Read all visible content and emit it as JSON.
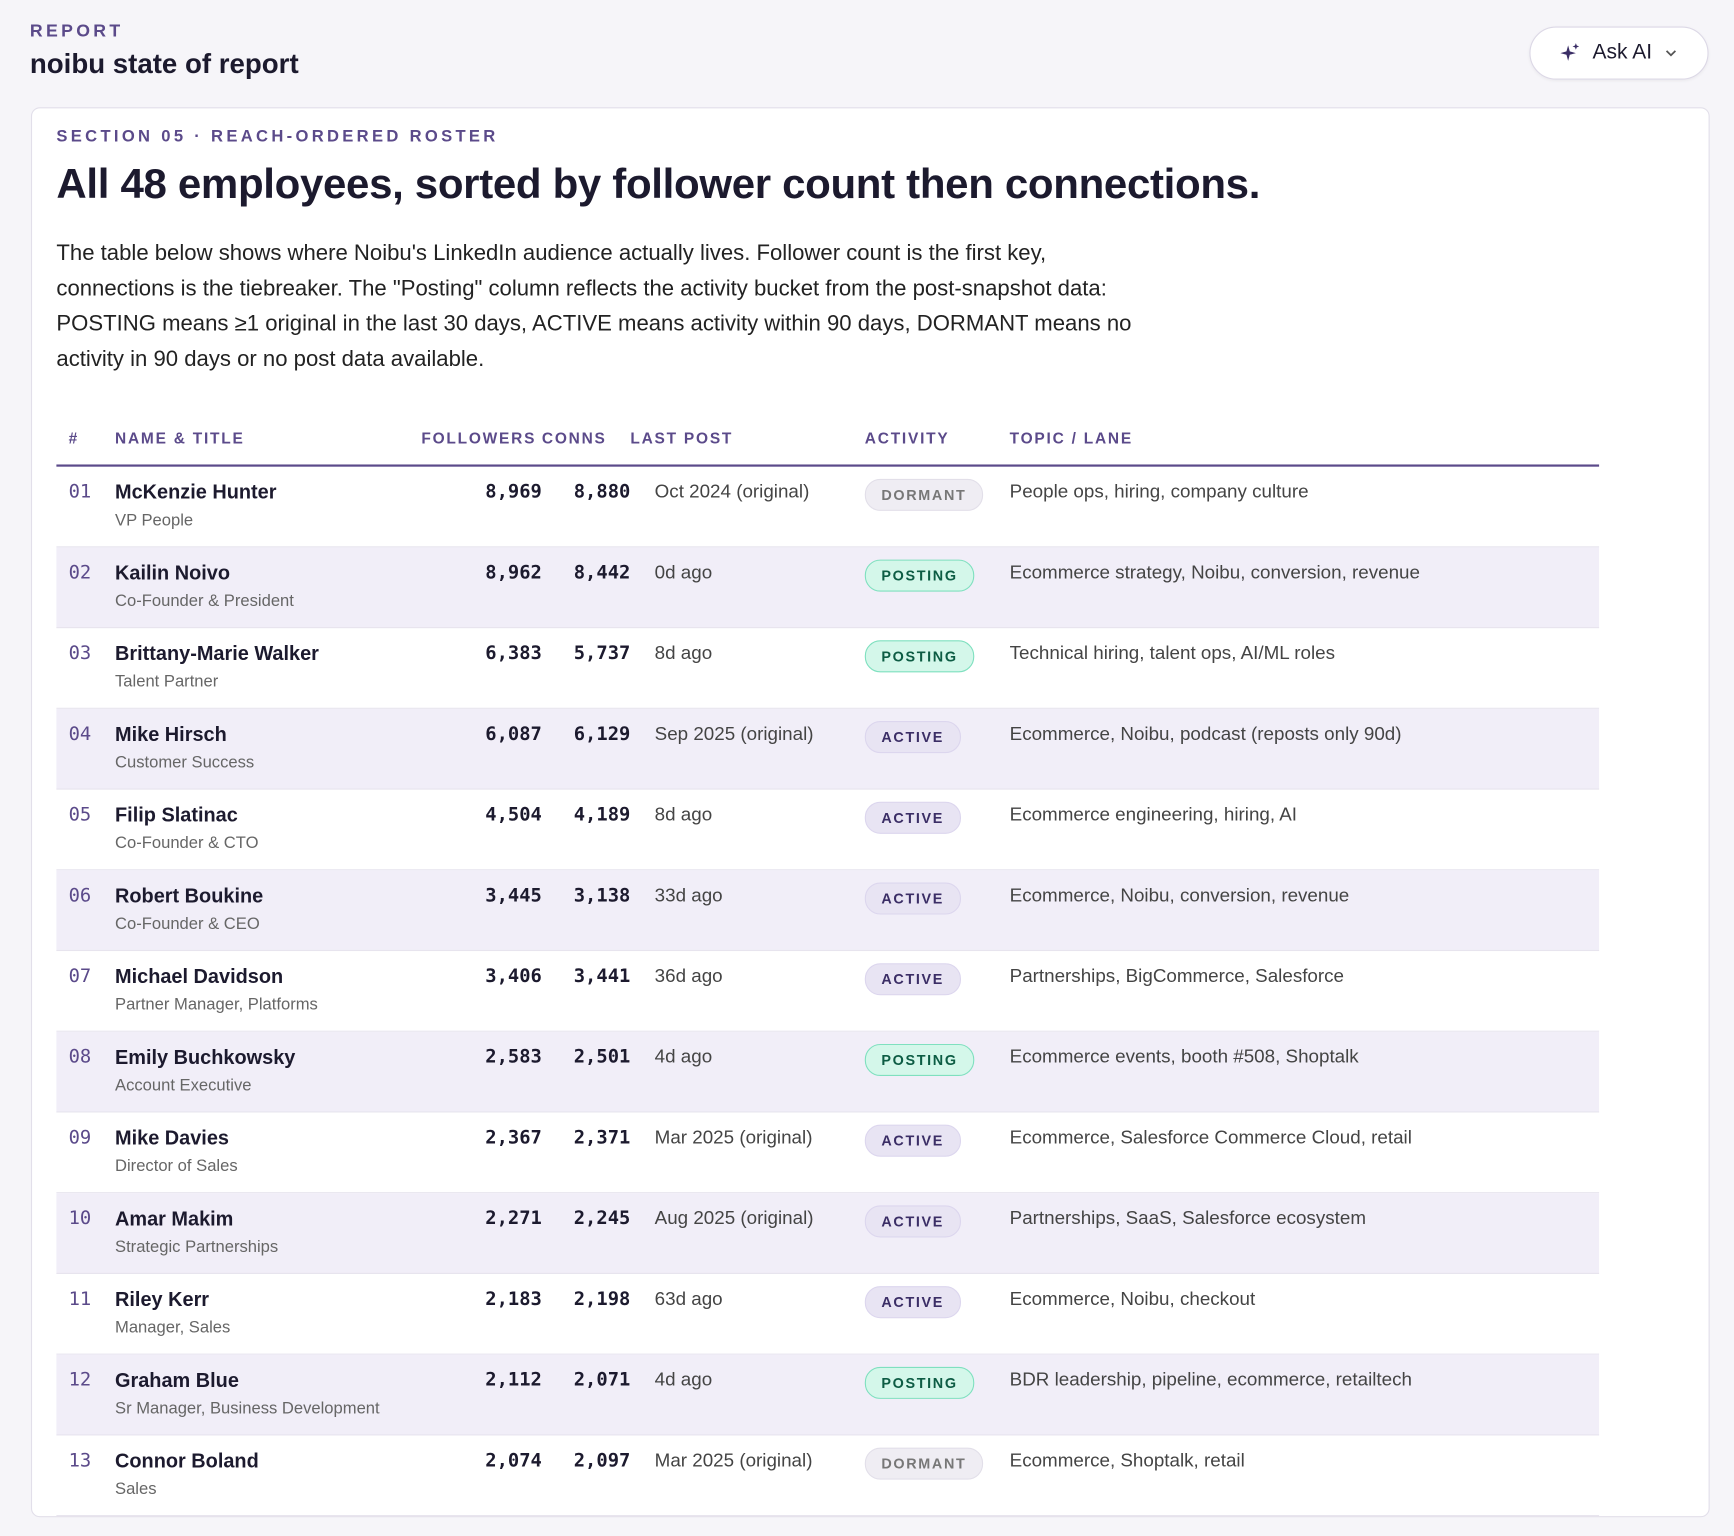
{
  "header": {
    "eyebrow": "REPORT",
    "title": "noibu state of report",
    "button": "Ask AI"
  },
  "section": {
    "eyebrow": "SECTION 05 · REACH-ORDERED ROSTER",
    "title": "All 48 employees, sorted by follower count then connections.",
    "paragraph": "The table below shows where Noibu's LinkedIn audience actually lives. Follower count is the first key, connections is the tiebreaker. The \"Posting\" column reflects the activity bucket from the post-snapshot data: POSTING means ≥1 original in the last 30 days, ACTIVE means activity within 90 days, DORMANT means no activity in 90 days or no post data available."
  },
  "table": {
    "columns": [
      "#",
      "NAME & TITLE",
      "FOLLOWERS",
      "CONNS",
      "LAST POST",
      "ACTIVITY",
      "TOPIC / LANE"
    ],
    "rows": [
      {
        "num": "01",
        "name": "McKenzie Hunter",
        "title": "VP People",
        "followers": "8,969",
        "conns": "8,880",
        "last_post": "Oct 2024 (original)",
        "activity": "DORMANT",
        "topic": "People ops, hiring, company culture"
      },
      {
        "num": "02",
        "name": "Kailin Noivo",
        "title": "Co-Founder & President",
        "followers": "8,962",
        "conns": "8,442",
        "last_post": "0d ago",
        "activity": "POSTING",
        "topic": "Ecommerce strategy, Noibu, conversion, revenue"
      },
      {
        "num": "03",
        "name": "Brittany-Marie Walker",
        "title": "Talent Partner",
        "followers": "6,383",
        "conns": "5,737",
        "last_post": "8d ago",
        "activity": "POSTING",
        "topic": "Technical hiring, talent ops, AI/ML roles"
      },
      {
        "num": "04",
        "name": "Mike Hirsch",
        "title": "Customer Success",
        "followers": "6,087",
        "conns": "6,129",
        "last_post": "Sep 2025 (original)",
        "activity": "ACTIVE",
        "topic": "Ecommerce, Noibu, podcast (reposts only 90d)"
      },
      {
        "num": "05",
        "name": "Filip Slatinac",
        "title": "Co-Founder & CTO",
        "followers": "4,504",
        "conns": "4,189",
        "last_post": "8d ago",
        "activity": "ACTIVE",
        "topic": "Ecommerce engineering, hiring, AI"
      },
      {
        "num": "06",
        "name": "Robert Boukine",
        "title": "Co-Founder & CEO",
        "followers": "3,445",
        "conns": "3,138",
        "last_post": "33d ago",
        "activity": "ACTIVE",
        "topic": "Ecommerce, Noibu, conversion, revenue"
      },
      {
        "num": "07",
        "name": "Michael Davidson",
        "title": "Partner Manager, Platforms",
        "followers": "3,406",
        "conns": "3,441",
        "last_post": "36d ago",
        "activity": "ACTIVE",
        "topic": "Partnerships, BigCommerce, Salesforce"
      },
      {
        "num": "08",
        "name": "Emily Buchkowsky",
        "title": "Account Executive",
        "followers": "2,583",
        "conns": "2,501",
        "last_post": "4d ago",
        "activity": "POSTING",
        "topic": "Ecommerce events, booth #508, Shoptalk"
      },
      {
        "num": "09",
        "name": "Mike Davies",
        "title": "Director of Sales",
        "followers": "2,367",
        "conns": "2,371",
        "last_post": "Mar 2025 (original)",
        "activity": "ACTIVE",
        "topic": "Ecommerce, Salesforce Commerce Cloud, retail"
      },
      {
        "num": "10",
        "name": "Amar Makim",
        "title": "Strategic Partnerships",
        "followers": "2,271",
        "conns": "2,245",
        "last_post": "Aug 2025 (original)",
        "activity": "ACTIVE",
        "topic": "Partnerships, SaaS, Salesforce ecosystem"
      },
      {
        "num": "11",
        "name": "Riley Kerr",
        "title": "Manager, Sales",
        "followers": "2,183",
        "conns": "2,198",
        "last_post": "63d ago",
        "activity": "ACTIVE",
        "topic": "Ecommerce, Noibu, checkout"
      },
      {
        "num": "12",
        "name": "Graham Blue",
        "title": "Sr Manager, Business Development",
        "followers": "2,112",
        "conns": "2,071",
        "last_post": "4d ago",
        "activity": "POSTING",
        "topic": "BDR leadership, pipeline, ecommerce, retailtech"
      },
      {
        "num": "13",
        "name": "Connor Boland",
        "title": "Sales",
        "followers": "2,074",
        "conns": "2,097",
        "last_post": "Mar 2025 (original)",
        "activity": "DORMANT",
        "topic": "Ecommerce, Shoptalk, retail"
      }
    ]
  }
}
